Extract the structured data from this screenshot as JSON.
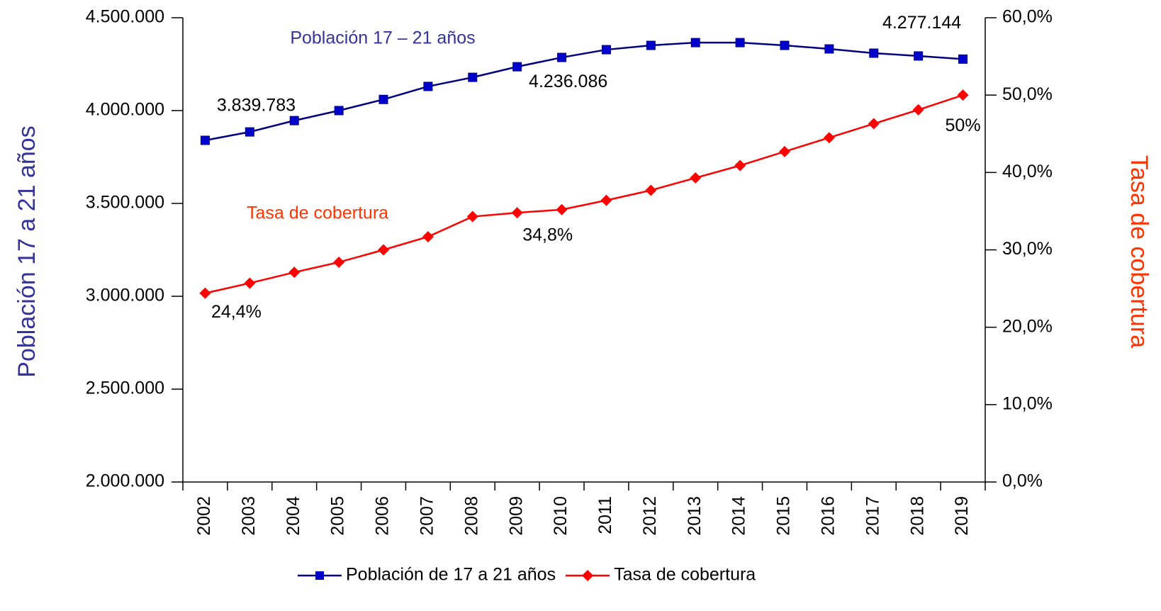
{
  "chart_data": {
    "type": "line",
    "categories": [
      "2002",
      "2003",
      "2004",
      "2005",
      "2006",
      "2007",
      "2008",
      "2009",
      "2010",
      "2011",
      "2012",
      "2013",
      "2014",
      "2015",
      "2016",
      "2017",
      "2018",
      "2019"
    ],
    "series": [
      {
        "name": "Población de 17 a 21 años",
        "color": "#000080",
        "marker_color": "#0000cc",
        "marker": "square",
        "values": [
          3839783,
          3885000,
          3946000,
          4000000,
          4060000,
          4130000,
          4179000,
          4236086,
          4286000,
          4328000,
          4351000,
          4366000,
          4366000,
          4351000,
          4332000,
          4309000,
          4294000,
          4277144
        ],
        "value_labels": [
          "3.839.783",
          null,
          null,
          null,
          null,
          null,
          null,
          "4.236.086",
          null,
          null,
          null,
          null,
          null,
          null,
          null,
          null,
          null,
          "4.277.144"
        ]
      },
      {
        "name": "Tasa de cobertura",
        "color": "#ff0000",
        "marker_color": "#ff0000",
        "marker": "diamond",
        "axis": "y2",
        "values": [
          24.4,
          25.7,
          27.1,
          28.4,
          30.0,
          31.7,
          34.3,
          34.8,
          35.2,
          36.4,
          37.7,
          39.3,
          40.9,
          42.7,
          44.5,
          46.3,
          48.1,
          50
        ],
        "value_labels": [
          "24,4%",
          null,
          null,
          null,
          null,
          null,
          null,
          "34,8%",
          null,
          null,
          null,
          null,
          null,
          null,
          null,
          null,
          null,
          "50%"
        ]
      }
    ],
    "ylabel": "Población 17 a 21 años",
    "y2label": "Tasa de cobertura",
    "annotations": [
      "Población 17 – 21 años",
      "Tasa de cobertura"
    ],
    "ylim": [
      2000000,
      4500000
    ],
    "yticks": [
      {
        "value": 2000000,
        "label": "2.000.000"
      },
      {
        "value": 2500000,
        "label": "2.500.000"
      },
      {
        "value": 3000000,
        "label": "3.000.000"
      },
      {
        "value": 3500000,
        "label": "3.500.000"
      },
      {
        "value": 4000000,
        "label": "4.000.000"
      },
      {
        "value": 4500000,
        "label": "4.500.000"
      }
    ],
    "y2lim": [
      0,
      60
    ],
    "y2ticks": [
      {
        "value": 0,
        "label": "0,0%"
      },
      {
        "value": 10,
        "label": "10,0%"
      },
      {
        "value": 20,
        "label": "20,0%"
      },
      {
        "value": 30,
        "label": "30,0%"
      },
      {
        "value": 40,
        "label": "40,0%"
      },
      {
        "value": 50,
        "label": "50,0%"
      },
      {
        "value": 60,
        "label": "60,0%"
      }
    ],
    "grid": false,
    "legend": "bottom"
  }
}
